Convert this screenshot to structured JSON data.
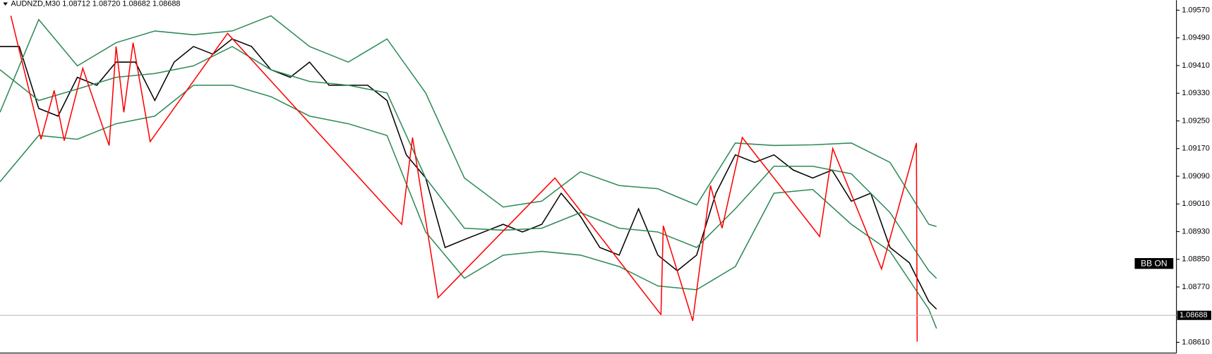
{
  "chart_data": {
    "type": "line",
    "title": "AUDNZD,M30  1.08712 1.08720 1.08682 1.08688",
    "button": "BB ON",
    "current_price": 1.08688,
    "xlim": [
      0,
      304
    ],
    "ylim": [
      1.08579,
      1.09599
    ],
    "yticks": [
      {
        "value": 1.0957,
        "label": "1.09570"
      },
      {
        "value": 1.0949,
        "label": "1.09490"
      },
      {
        "value": 1.0941,
        "label": "1.09410"
      },
      {
        "value": 1.0933,
        "label": "1.09330"
      },
      {
        "value": 1.0925,
        "label": "1.09250"
      },
      {
        "value": 1.0917,
        "label": "1.09170"
      },
      {
        "value": 1.0909,
        "label": "1.09090"
      },
      {
        "value": 1.0901,
        "label": "1.09010"
      },
      {
        "value": 1.0893,
        "label": "1.08930"
      },
      {
        "value": 1.0885,
        "label": "1.08850"
      },
      {
        "value": 1.0877,
        "label": "1.08770"
      },
      {
        "value": 1.0861,
        "label": "1.08610"
      }
    ],
    "series": [
      {
        "color": "#000000",
        "x": [
          0,
          5,
          10,
          15,
          20,
          25,
          30,
          35,
          40,
          45,
          50,
          55,
          60,
          65,
          70,
          75,
          80,
          85,
          90,
          95,
          100,
          105,
          110,
          115,
          120,
          125,
          130,
          135,
          140,
          145,
          150,
          155,
          160,
          165,
          170,
          175,
          180,
          185,
          190,
          195,
          200,
          205,
          210,
          215,
          220,
          225,
          230,
          235,
          240,
          242
        ],
        "values": [
          1.09465,
          1.09465,
          1.09286,
          1.09264,
          1.09376,
          1.09353,
          1.0942,
          1.0942,
          1.09309,
          1.0942,
          1.09465,
          1.09443,
          1.09487,
          1.09465,
          1.09398,
          1.09376,
          1.0942,
          1.09353,
          1.09353,
          1.09353,
          1.09309,
          1.09152,
          1.09085,
          1.08884,
          1.08907,
          1.08929,
          1.08951,
          1.08929,
          1.08951,
          1.09041,
          1.08974,
          1.08884,
          1.08862,
          1.08996,
          1.08862,
          1.08817,
          1.08862,
          1.09041,
          1.09152,
          1.0913,
          1.09152,
          1.09108,
          1.09085,
          1.09108,
          1.09018,
          1.09041,
          1.08884,
          1.0884,
          1.08728,
          1.08706
        ]
      },
      {
        "color": "#2e8b57",
        "x": [
          0,
          10,
          20,
          30,
          40,
          50,
          60,
          70,
          80,
          90,
          100,
          110,
          120,
          130,
          140,
          150,
          160,
          170,
          180,
          190,
          200,
          210,
          220,
          230,
          240,
          242
        ],
        "values": [
          1.09275,
          1.09543,
          1.09409,
          1.09476,
          1.0951,
          1.09499,
          1.0951,
          1.09554,
          1.09465,
          1.0942,
          1.09487,
          1.09331,
          1.09085,
          1.09001,
          1.09018,
          1.09103,
          1.09063,
          1.09054,
          1.09007,
          1.09186,
          1.09179,
          1.09181,
          1.09186,
          1.0913,
          1.08951,
          1.08945
        ]
      },
      {
        "color": "#2e8b57",
        "x": [
          0,
          10,
          20,
          30,
          40,
          50,
          60,
          70,
          80,
          90,
          100,
          110,
          120,
          130,
          140,
          150,
          160,
          170,
          180,
          190,
          200,
          210,
          220,
          230,
          240,
          242
        ],
        "values": [
          1.09398,
          1.09309,
          1.09342,
          1.09376,
          1.09387,
          1.09409,
          1.09465,
          1.09398,
          1.09364,
          1.09353,
          1.09331,
          1.09085,
          1.0894,
          1.08934,
          1.0894,
          1.08985,
          1.0894,
          1.08929,
          1.08884,
          1.08996,
          1.09119,
          1.09119,
          1.09097,
          1.08985,
          1.08817,
          1.08795
        ]
      },
      {
        "color": "#2e8b57",
        "x": [
          0,
          10,
          20,
          30,
          40,
          50,
          60,
          70,
          80,
          90,
          100,
          110,
          120,
          130,
          140,
          150,
          160,
          170,
          180,
          190,
          200,
          210,
          220,
          230,
          240,
          242
        ],
        "values": [
          1.09074,
          1.09208,
          1.09197,
          1.09242,
          1.09264,
          1.09353,
          1.09353,
          1.0932,
          1.09264,
          1.09242,
          1.09208,
          1.08929,
          1.08795,
          1.08862,
          1.08873,
          1.08862,
          1.08829,
          1.08773,
          1.08762,
          1.08829,
          1.09041,
          1.09052,
          1.08951,
          1.08873,
          1.08706,
          1.0865
        ]
      },
      {
        "color": "#ff0000",
        "x": [
          2.8,
          10.6,
          14,
          16.6,
          21.4,
          28.2,
          30,
          32,
          34.4,
          38.8,
          58.8,
          103.8,
          106.6,
          113.2,
          143.4,
          170.8,
          171.4,
          179,
          183.6,
          186.6,
          191.8,
          211.8,
          215.2,
          227.8,
          236.8,
          237
        ],
        "values": [
          1.09554,
          1.09197,
          1.09338,
          1.09193,
          1.09402,
          1.09179,
          1.09465,
          1.09275,
          1.09476,
          1.0919,
          1.09503,
          1.08951,
          1.09202,
          1.08739,
          1.09085,
          1.0869,
          1.08947,
          1.08672,
          1.09063,
          1.0894,
          1.09202,
          1.08916,
          1.0917,
          1.08822,
          1.09186,
          1.08612
        ]
      }
    ]
  }
}
